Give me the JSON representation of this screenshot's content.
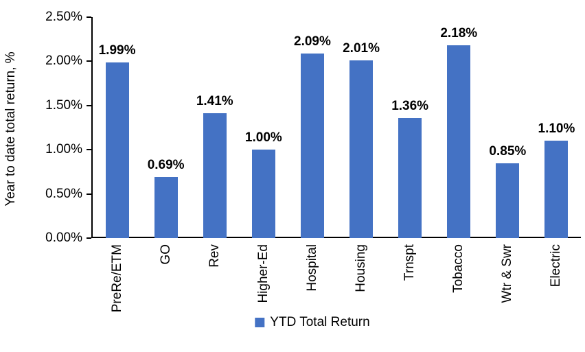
{
  "chart_data": {
    "type": "bar",
    "title": "",
    "xlabel": "",
    "ylabel": "Year to date total return, %",
    "categories": [
      "PreRe/ETM",
      "GO",
      "Rev",
      "Higher-Ed",
      "Hospital",
      "Housing",
      "Trnspt",
      "Tobacco",
      "Wtr & Swr",
      "Electric"
    ],
    "series": [
      {
        "name": "YTD Total Return",
        "values": [
          1.99,
          0.69,
          1.41,
          1.0,
          2.09,
          2.01,
          1.36,
          2.18,
          0.85,
          1.1
        ]
      }
    ],
    "value_labels": [
      "1.99%",
      "0.69%",
      "1.41%",
      "1.00%",
      "2.09%",
      "2.01%",
      "1.36%",
      "2.18%",
      "0.85%",
      "1.10%"
    ],
    "ylim": [
      0,
      2.5
    ],
    "yticks": [
      "0.00%",
      "0.50%",
      "1.00%",
      "1.50%",
      "2.00%",
      "2.50%"
    ],
    "grid": false,
    "legend_position": "bottom",
    "bar_color": "#4472C4"
  },
  "legend": {
    "label": "YTD Total Return",
    "swatch_color": "#4472C4"
  }
}
